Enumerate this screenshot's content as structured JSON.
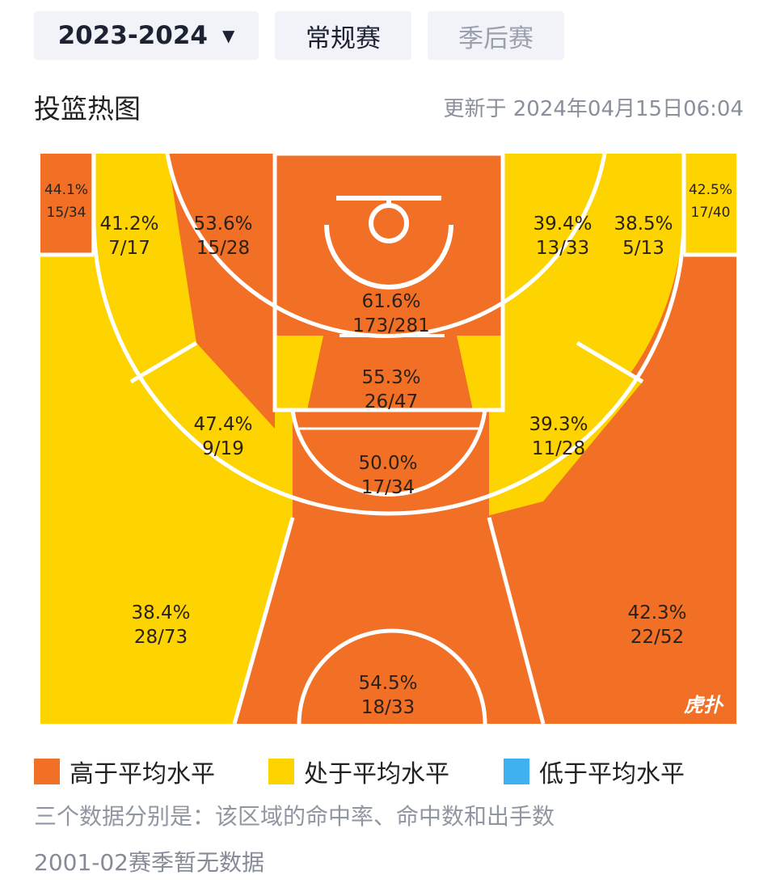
{
  "tabs": {
    "season_value": "2023-2024",
    "regular": "常规赛",
    "playoff": "季后赛"
  },
  "header": {
    "title": "投篮热图",
    "updated": "更新于 2024年04月15日06:04"
  },
  "colors": {
    "above": "#f26f26",
    "average": "#fdd400",
    "below": "#3fb1f0",
    "court_line": "#ffffff"
  },
  "zones": {
    "left_corner_mid": {
      "pct": "44.1%",
      "ratio": "15/34",
      "level": "above"
    },
    "right_corner_mid": {
      "pct": "42.5%",
      "ratio": "17/40",
      "level": "average"
    },
    "left_long_mid": {
      "pct": "41.2%",
      "ratio": "7/17",
      "level": "average"
    },
    "left_short_mid": {
      "pct": "53.6%",
      "ratio": "15/28",
      "level": "above"
    },
    "right_short_mid": {
      "pct": "39.4%",
      "ratio": "13/33",
      "level": "average"
    },
    "right_long_mid": {
      "pct": "38.5%",
      "ratio": "5/13",
      "level": "average"
    },
    "restricted_area": {
      "pct": "61.6%",
      "ratio": "173/281",
      "level": "above"
    },
    "paint": {
      "pct": "55.3%",
      "ratio": "26/47",
      "level": "above"
    },
    "left_wing_mid": {
      "pct": "47.4%",
      "ratio": "9/19",
      "level": "average"
    },
    "right_wing_mid": {
      "pct": "39.3%",
      "ratio": "11/28",
      "level": "average"
    },
    "top_key": {
      "pct": "50.0%",
      "ratio": "17/34",
      "level": "above"
    },
    "left_three": {
      "pct": "38.4%",
      "ratio": "28/73",
      "level": "average"
    },
    "right_three": {
      "pct": "42.3%",
      "ratio": "22/52",
      "level": "above"
    },
    "top_three": {
      "pct": "54.5%",
      "ratio": "18/33",
      "level": "above"
    }
  },
  "watermark": "虎扑",
  "legend": {
    "above": "高于平均水平",
    "average": "处于平均水平",
    "below": "低于平均水平"
  },
  "notes": {
    "explain": "三个数据分别是：该区域的命中率、命中数和出手数",
    "no_data": "2001-02赛季暂无数据"
  }
}
